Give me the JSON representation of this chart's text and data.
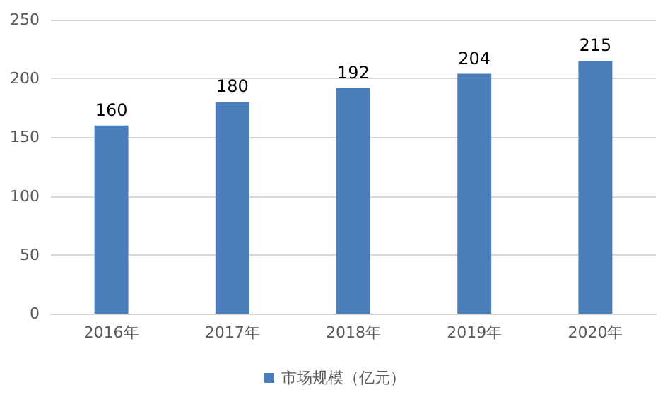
{
  "chart_data": {
    "type": "bar",
    "categories": [
      "2016年",
      "2017年",
      "2018年",
      "2019年",
      "2020年"
    ],
    "series": [
      {
        "name": "市场规模（亿元）",
        "color": "#4a7ebb",
        "values": [
          160,
          180,
          192,
          204,
          215
        ]
      }
    ],
    "ylim": [
      0,
      250
    ],
    "yticks": [
      0,
      50,
      100,
      150,
      200,
      250
    ],
    "grid": "y",
    "legend": "bottom",
    "data_labels": true
  }
}
